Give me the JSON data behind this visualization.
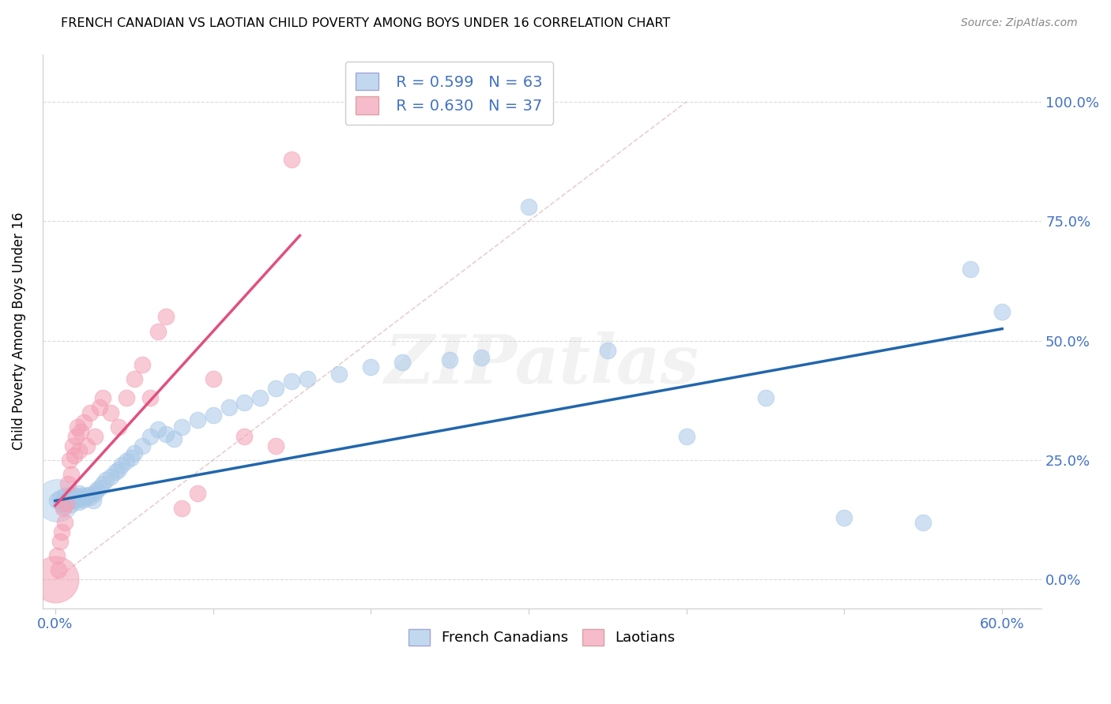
{
  "title": "FRENCH CANADIAN VS LAOTIAN CHILD POVERTY AMONG BOYS UNDER 16 CORRELATION CHART",
  "source": "Source: ZipAtlas.com",
  "xlabel_ticks": [
    "0.0%",
    "",
    "",
    "",
    "",
    "",
    "60.0%"
  ],
  "xlabel_vals": [
    0.0,
    0.1,
    0.2,
    0.3,
    0.4,
    0.5,
    0.6
  ],
  "ylabel_ticks": [
    "0.0%",
    "25.0%",
    "50.0%",
    "75.0%",
    "100.0%"
  ],
  "ylabel_vals": [
    0.0,
    0.25,
    0.5,
    0.75,
    1.0
  ],
  "ylabel_label": "Child Poverty Among Boys Under 16",
  "legend_blue_r": "R = 0.599",
  "legend_blue_n": "N = 63",
  "legend_pink_r": "R = 0.630",
  "legend_pink_n": "N = 37",
  "legend_blue_label": "French Canadians",
  "legend_pink_label": "Laotians",
  "blue_color": "#a8c8e8",
  "pink_color": "#f4a0b5",
  "blue_line_color": "#2166ac",
  "pink_line_color": "#e05080",
  "watermark": "ZIPatlas",
  "blue_points_x": [
    0.001,
    0.003,
    0.004,
    0.005,
    0.006,
    0.007,
    0.008,
    0.009,
    0.01,
    0.01,
    0.011,
    0.012,
    0.013,
    0.014,
    0.015,
    0.015,
    0.016,
    0.017,
    0.018,
    0.019,
    0.02,
    0.021,
    0.022,
    0.024,
    0.025,
    0.026,
    0.028,
    0.03,
    0.032,
    0.035,
    0.038,
    0.04,
    0.042,
    0.045,
    0.048,
    0.05,
    0.055,
    0.06,
    0.065,
    0.07,
    0.075,
    0.08,
    0.09,
    0.1,
    0.11,
    0.12,
    0.13,
    0.14,
    0.15,
    0.16,
    0.18,
    0.2,
    0.22,
    0.25,
    0.27,
    0.3,
    0.35,
    0.4,
    0.45,
    0.5,
    0.55,
    0.58,
    0.6
  ],
  "blue_points_y": [
    0.165,
    0.17,
    0.16,
    0.155,
    0.175,
    0.168,
    0.162,
    0.172,
    0.158,
    0.178,
    0.165,
    0.17,
    0.175,
    0.168,
    0.162,
    0.18,
    0.17,
    0.175,
    0.168,
    0.172,
    0.175,
    0.178,
    0.172,
    0.165,
    0.18,
    0.188,
    0.192,
    0.2,
    0.208,
    0.215,
    0.225,
    0.23,
    0.24,
    0.248,
    0.255,
    0.265,
    0.28,
    0.3,
    0.315,
    0.305,
    0.295,
    0.32,
    0.335,
    0.345,
    0.36,
    0.37,
    0.38,
    0.4,
    0.415,
    0.42,
    0.43,
    0.445,
    0.455,
    0.46,
    0.465,
    0.78,
    0.48,
    0.3,
    0.38,
    0.13,
    0.12,
    0.65,
    0.56
  ],
  "pink_points_x": [
    0.001,
    0.002,
    0.003,
    0.004,
    0.005,
    0.006,
    0.007,
    0.008,
    0.009,
    0.01,
    0.011,
    0.012,
    0.013,
    0.014,
    0.015,
    0.016,
    0.018,
    0.02,
    0.022,
    0.025,
    0.028,
    0.03,
    0.035,
    0.04,
    0.045,
    0.05,
    0.055,
    0.06,
    0.065,
    0.07,
    0.08,
    0.09,
    0.1,
    0.12,
    0.14,
    0.15,
    0.0
  ],
  "pink_points_y": [
    0.05,
    0.02,
    0.08,
    0.1,
    0.15,
    0.12,
    0.16,
    0.2,
    0.25,
    0.22,
    0.28,
    0.26,
    0.3,
    0.32,
    0.27,
    0.31,
    0.33,
    0.28,
    0.35,
    0.3,
    0.36,
    0.38,
    0.35,
    0.32,
    0.38,
    0.42,
    0.45,
    0.38,
    0.52,
    0.55,
    0.15,
    0.18,
    0.42,
    0.3,
    0.28,
    0.88,
    0.0
  ],
  "pink_large_idx": 36,
  "blue_large_idx": -1,
  "blue_line_x": [
    0.0,
    0.6
  ],
  "blue_line_y": [
    0.165,
    0.525
  ],
  "pink_line_x": [
    0.0,
    0.155
  ],
  "pink_line_y": [
    0.155,
    0.72
  ],
  "diag_line_x": [
    0.0,
    0.4
  ],
  "diag_line_y": [
    0.0,
    1.0
  ],
  "xlim": [
    -0.008,
    0.625
  ],
  "ylim": [
    -0.06,
    1.1
  ]
}
